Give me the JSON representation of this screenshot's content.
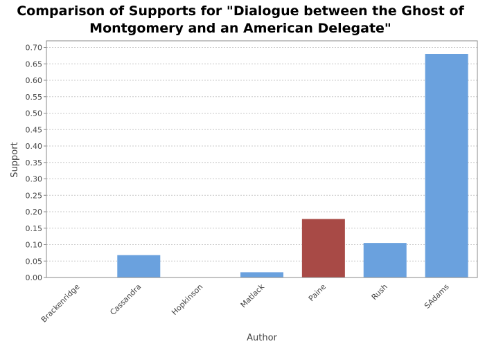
{
  "chart_data": {
    "type": "bar",
    "title_line1": "Comparison of Supports for \"Dialogue between the Ghost of",
    "title_line2": "Montgomery and an American Delegate\"",
    "xlabel": "Author",
    "ylabel": "Support",
    "categories": [
      "Brackenridge",
      "Cassandra",
      "Hopkinson",
      "Matlack",
      "Paine",
      "Rush",
      "SAdams"
    ],
    "values": [
      0.0,
      0.068,
      0.0,
      0.016,
      0.178,
      0.105,
      0.68
    ],
    "highlight_category": "Paine",
    "ylim": [
      0,
      0.72
    ],
    "yticks": [
      "0.00",
      "0.05",
      "0.10",
      "0.15",
      "0.20",
      "0.25",
      "0.30",
      "0.35",
      "0.40",
      "0.45",
      "0.50",
      "0.55",
      "0.60",
      "0.65",
      "0.70"
    ],
    "grid": true,
    "colors": {
      "bar": "#6aa1de",
      "highlight": "#a84a46",
      "grid": "#c8c8c8",
      "frame": "#888888"
    }
  }
}
